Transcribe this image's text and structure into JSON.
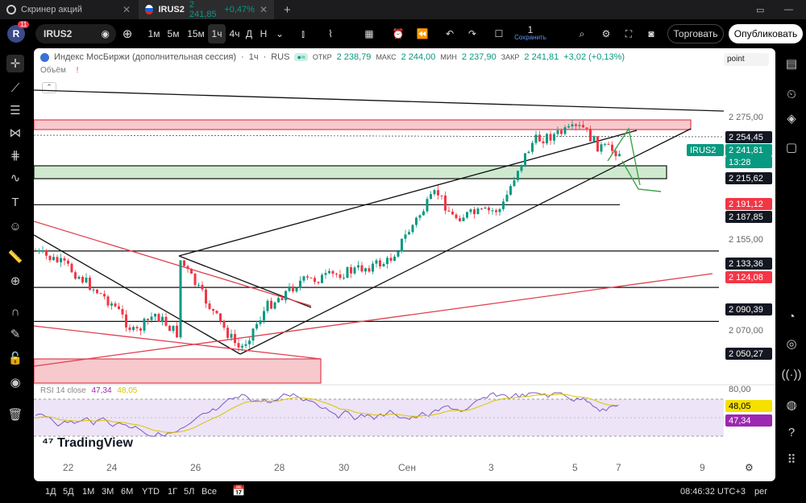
{
  "tabs": [
    {
      "label": "Скринер акций"
    },
    {
      "label": "IRUS2",
      "price": "2 241,85",
      "change": "+0,47%"
    }
  ],
  "toolbar": {
    "avatar": "R",
    "badge": "11",
    "symbol": "IRUS2",
    "intervals": [
      "1м",
      "5м",
      "15м",
      "1ч",
      "4ч",
      "Д",
      "Н"
    ],
    "selected_interval": "1ч",
    "layout_count": "1",
    "save_label": "Сохранить",
    "trade_label": "Торговать",
    "publish_label": "Опубликовать"
  },
  "legend": {
    "name": "Индекс МосБиржи (дополнительная сессия)",
    "interval": "1ч",
    "exchange": "RUS",
    "open_label": "ОТКР",
    "open": "2 238,79",
    "high_label": "МАКС",
    "high": "2 244,00",
    "low_label": "МИН",
    "low": "2 237,90",
    "close_label": "ЗАКР",
    "close": "2 241,81",
    "change": "+3,02 (+0,13%)",
    "volume_label": "Объём",
    "mode": "point"
  },
  "price_axis": {
    "ticks": [
      "2 275,00",
      "2 155,00",
      "2 070,00",
      "80,00"
    ],
    "tags": [
      {
        "text": "2 254,45",
        "style": "black"
      },
      {
        "text": "2 241,81",
        "style": "green"
      },
      {
        "text": "13:28",
        "style": "green"
      },
      {
        "text": "2 215,62",
        "style": "black"
      },
      {
        "text": "2 191,12",
        "style": "red"
      },
      {
        "text": "2 187,85",
        "style": "black"
      },
      {
        "text": "2 133,36",
        "style": "black"
      },
      {
        "text": "2 124,08",
        "style": "red"
      },
      {
        "text": "2 090,39",
        "style": "black"
      },
      {
        "text": "2 050,27",
        "style": "black"
      },
      {
        "text": "48,05",
        "style": "yellow"
      },
      {
        "text": "47,34",
        "style": "purple"
      }
    ],
    "symbol_tag": "IRUS2"
  },
  "rsi": {
    "label": "RSI 14 close",
    "value1": "47,34",
    "value2": "48,05"
  },
  "logo": "TradingView",
  "time_axis": [
    "22",
    "24",
    "26",
    "28",
    "30",
    "Сен",
    "3",
    "5",
    "7",
    "9"
  ],
  "bottom": {
    "ranges": [
      "1Д",
      "5Д",
      "1М",
      "3М",
      "6М",
      "YTD",
      "1Г",
      "5Л",
      "Все"
    ],
    "clock": "08:46:32 UTC+3",
    "session": "рег"
  },
  "colors": {
    "up": "#089981",
    "down": "#f23645",
    "zone_red": "#f7c9cd",
    "zone_green": "#cfe9cf",
    "rsi_fill": "#ede4f7"
  }
}
